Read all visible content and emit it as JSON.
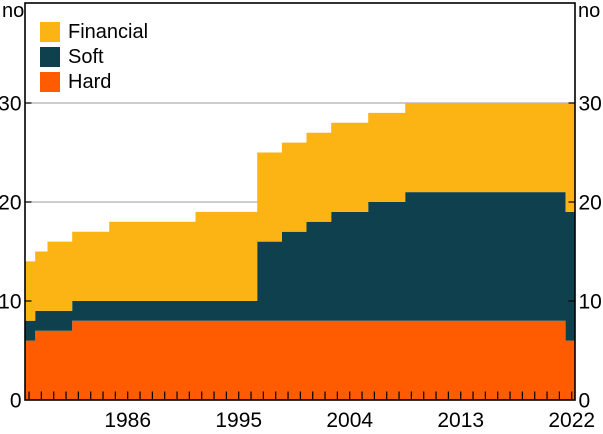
{
  "units_label_left": "no",
  "units_label_right": "no",
  "legend": {
    "items": [
      {
        "label": "Financial",
        "color": "#FBB414"
      },
      {
        "label": "Soft",
        "color": "#0F404D"
      },
      {
        "label": "Hard",
        "color": "#FF5B00"
      }
    ]
  },
  "chart_data": {
    "type": "area",
    "subtype": "stacked-stepped-annual",
    "title": "",
    "units": "no",
    "legend_position": "top-left",
    "years": [
      1978,
      1979,
      1980,
      1981,
      1982,
      1983,
      1984,
      1985,
      1986,
      1987,
      1988,
      1989,
      1990,
      1991,
      1992,
      1993,
      1994,
      1995,
      1996,
      1997,
      1998,
      1999,
      2000,
      2001,
      2002,
      2003,
      2004,
      2005,
      2006,
      2007,
      2008,
      2009,
      2010,
      2011,
      2012,
      2013,
      2014,
      2015,
      2016,
      2017,
      2018,
      2019,
      2020,
      2021,
      2022
    ],
    "series": [
      {
        "name": "Hard",
        "color": "#FF5B00",
        "values": [
          6,
          7,
          7,
          7,
          8,
          8,
          8,
          8,
          8,
          8,
          8,
          8,
          8,
          8,
          8,
          8,
          8,
          8,
          8,
          8,
          8,
          8,
          8,
          8,
          8,
          8,
          8,
          8,
          8,
          8,
          8,
          8,
          8,
          8,
          8,
          8,
          8,
          8,
          8,
          8,
          8,
          8,
          8,
          8,
          6
        ]
      },
      {
        "name": "Soft",
        "color": "#0F404D",
        "values": [
          2,
          2,
          2,
          2,
          2,
          2,
          2,
          2,
          2,
          2,
          2,
          2,
          2,
          2,
          2,
          2,
          2,
          2,
          2,
          8,
          8,
          9,
          9,
          10,
          10,
          11,
          11,
          11,
          12,
          12,
          12,
          13,
          13,
          13,
          13,
          13,
          13,
          13,
          13,
          13,
          13,
          13,
          13,
          13,
          13
        ]
      },
      {
        "name": "Financial",
        "color": "#FBB414",
        "values": [
          6,
          6,
          7,
          7,
          7,
          7,
          7,
          8,
          8,
          8,
          8,
          8,
          8,
          8,
          9,
          9,
          9,
          9,
          9,
          9,
          9,
          9,
          9,
          9,
          9,
          9,
          9,
          9,
          9,
          9,
          9,
          9,
          9,
          9,
          9,
          9,
          9,
          9,
          9,
          9,
          9,
          9,
          9,
          9,
          11
        ]
      }
    ],
    "stack_order": "bottom-to-top",
    "totals_note": "stacked totals: 14 (1978) rising to 19 (1992), jump to 25 in 1997, 30 from 2009 through 2022",
    "axes": {
      "x": {
        "tick_labels": [
          "1986",
          "1995",
          "2004",
          "2013",
          "2022"
        ],
        "ticks_every_year": true,
        "range": [
          1977.6,
          2022.3
        ]
      },
      "y": {
        "ticks": [
          "0",
          "10",
          "20",
          "30"
        ],
        "tick_values": [
          0,
          10,
          20,
          30
        ],
        "range": [
          0,
          40
        ],
        "gridlines": [
          10,
          20,
          30
        ],
        "gridline_color": "#AFAFAF",
        "label_both_sides": true
      }
    }
  }
}
